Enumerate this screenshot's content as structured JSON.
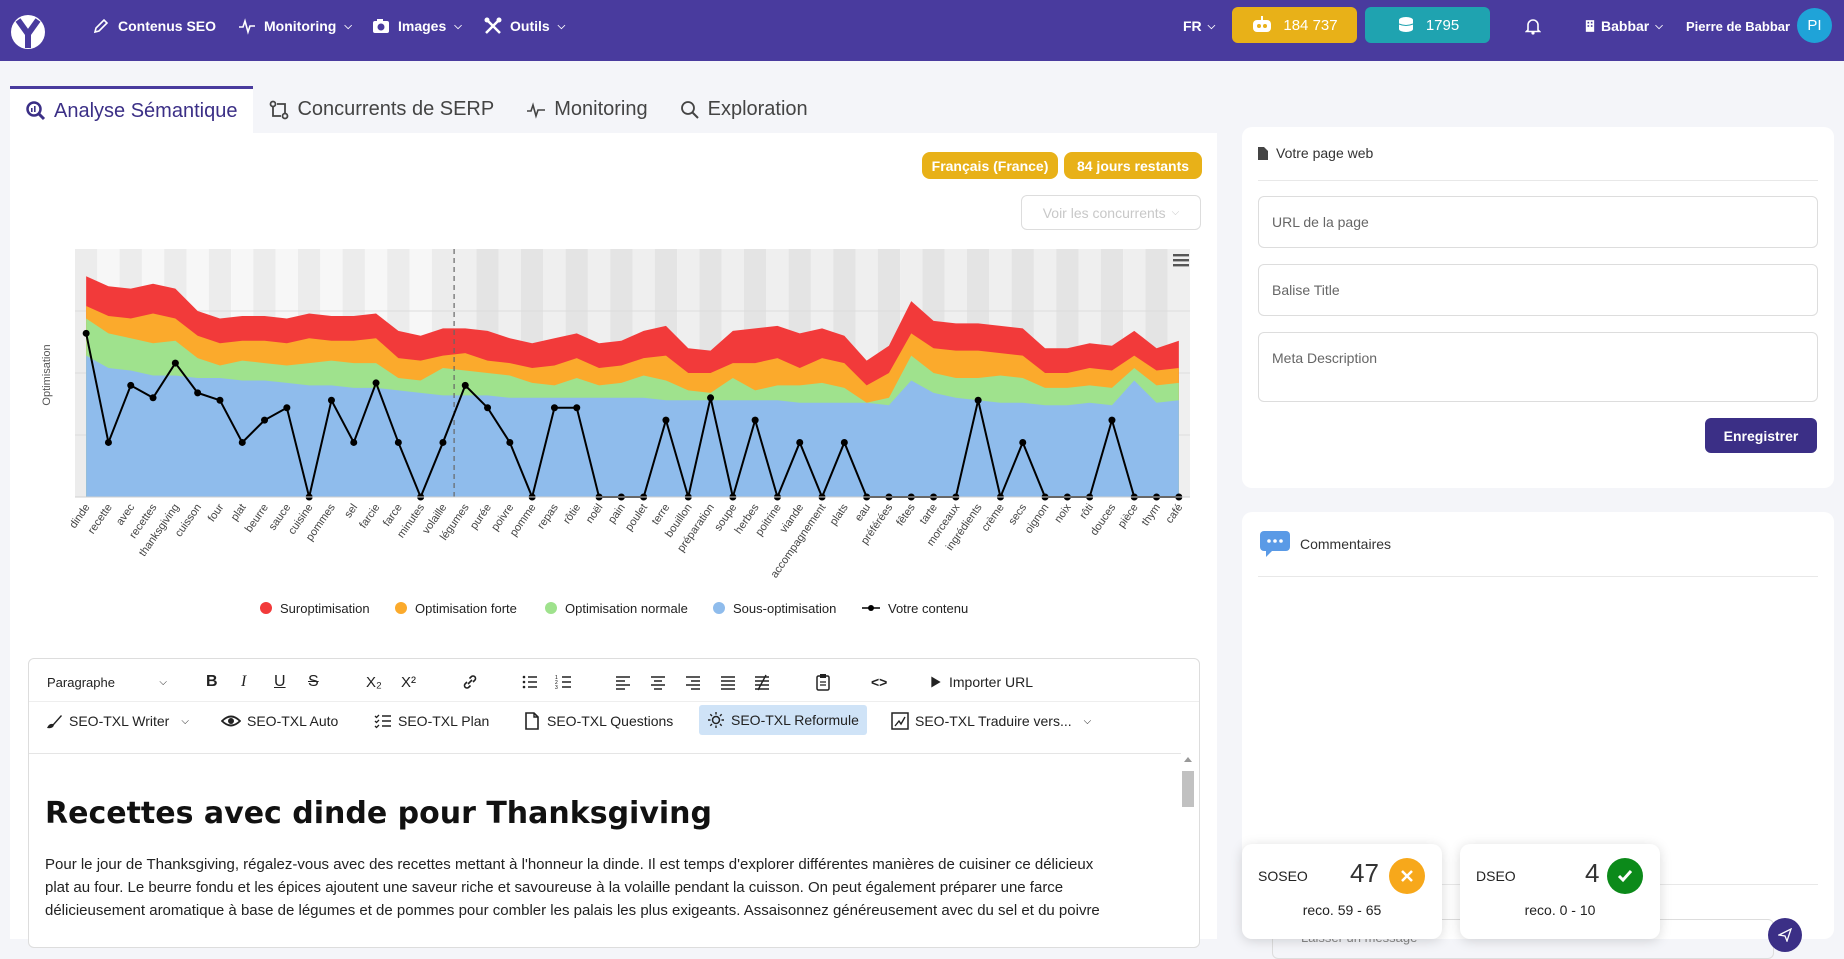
{
  "nav": {
    "items": [
      {
        "label": "Contenus SEO"
      },
      {
        "label": "Monitoring"
      },
      {
        "label": "Images"
      },
      {
        "label": "Outils"
      }
    ],
    "lang": "FR",
    "credits_primary": "184 737",
    "credits_secondary": "1795",
    "workspace": "Babbar",
    "user_name": "Pierre de Babbar",
    "user_initials": "PI"
  },
  "tabs": [
    {
      "label": "Analyse Sémantique"
    },
    {
      "label": "Concurrents de SERP"
    },
    {
      "label": "Monitoring"
    },
    {
      "label": "Exploration"
    }
  ],
  "badges": {
    "language": "Français (France)",
    "days": "84 jours restants"
  },
  "compare_button": "Voir les concurrents",
  "colors": {
    "brand": "#493b9e",
    "gold": "#e8b118",
    "teal": "#1fa3b0",
    "red": "#f23a3a",
    "orange": "#fbaa2c",
    "green": "#9fe28d",
    "blue": "#8fbcec"
  },
  "chart_data": {
    "type": "area",
    "ylabel": "Optimisation",
    "categories": [
      "dinde",
      "recette",
      "avec",
      "recettes",
      "thanksgiving",
      "cuisson",
      "four",
      "plat",
      "beurre",
      "sauce",
      "cuisine",
      "pommes",
      "sel",
      "farcie",
      "farce",
      "minutes",
      "volaille",
      "légumes",
      "purée",
      "poivre",
      "pomme",
      "repas",
      "rôtie",
      "noël",
      "pain",
      "poulet",
      "terre",
      "bouillon",
      "préparation",
      "soupe",
      "herbes",
      "poitrine",
      "viande",
      "accompagnement",
      "plats",
      "eau",
      "préférées",
      "fêtes",
      "tarte",
      "morceaux",
      "ingrédients",
      "crème",
      "secs",
      "oignon",
      "noix",
      "rôti",
      "douces",
      "pièce",
      "thym",
      "café"
    ],
    "series": [
      {
        "name": "Sous-optimisation",
        "values": [
          57,
          52,
          51,
          49,
          49,
          48,
          48,
          47,
          47,
          46,
          45,
          45,
          44,
          44,
          43,
          42,
          41,
          41,
          41,
          40,
          40,
          40,
          40,
          40,
          40,
          40,
          39,
          39,
          39,
          39,
          39,
          39,
          38,
          38,
          38,
          38,
          37,
          47,
          42,
          40,
          39,
          38,
          38,
          37,
          37,
          38,
          37,
          47,
          38,
          39
        ]
      },
      {
        "name": "Optimisation normale",
        "values": [
          72,
          66,
          64,
          62,
          63,
          56,
          53,
          55,
          54,
          53,
          54,
          55,
          54,
          54,
          48,
          47,
          52,
          51,
          50,
          49,
          46,
          45,
          48,
          45,
          46,
          49,
          47,
          43,
          42,
          48,
          43,
          45,
          45,
          46,
          44,
          38,
          40,
          57,
          50,
          48,
          48,
          49,
          48,
          44,
          44,
          45,
          44,
          52,
          45,
          46
        ]
      },
      {
        "name": "Optimisation forte",
        "values": [
          77,
          73,
          72,
          74,
          72,
          65,
          62,
          63,
          63,
          62,
          64,
          63,
          63,
          64,
          56,
          55,
          57,
          58,
          55,
          54,
          52,
          53,
          56,
          52,
          53,
          56,
          57,
          50,
          50,
          54,
          54,
          56,
          52,
          56,
          54,
          45,
          50,
          66,
          60,
          59,
          59,
          58,
          57,
          50,
          50,
          52,
          51,
          57,
          51,
          52
        ]
      },
      {
        "name": "Suroptimisation",
        "values": [
          89,
          85,
          84,
          86,
          84,
          75,
          72,
          73,
          73,
          72,
          74,
          73,
          73,
          74,
          67,
          65,
          68,
          68,
          67,
          64,
          62,
          64,
          66,
          62,
          63,
          67,
          69,
          60,
          59,
          67,
          68,
          69,
          66,
          68,
          65,
          55,
          61,
          79,
          71,
          70,
          70,
          69,
          68,
          60,
          60,
          62,
          61,
          67,
          60,
          63
        ]
      },
      {
        "name": "Votre contenu",
        "values": [
          66,
          22,
          45,
          40,
          54,
          42,
          39,
          22,
          31,
          36,
          0,
          39,
          22,
          46,
          22,
          0,
          22,
          45,
          36,
          22,
          0,
          36,
          36,
          0,
          0,
          0,
          31,
          0,
          40,
          0,
          31,
          0,
          22,
          0,
          22,
          0,
          0,
          0,
          0,
          0,
          39,
          0,
          22,
          0,
          0,
          0,
          31,
          0,
          0,
          0
        ]
      }
    ],
    "ylim": [
      0,
      100
    ],
    "marker_after": "volaille",
    "legend_position": "bottom"
  },
  "editor": {
    "format": "Paragraphe",
    "import_url": "Importer URL",
    "ai_tools": [
      "SEO-TXL Writer",
      "SEO-TXL Auto",
      "SEO-TXL Plan",
      "SEO-TXL Questions",
      "SEO-TXL Reformule",
      "SEO-TXL Traduire vers..."
    ],
    "heading": "Recettes avec dinde pour Thanksgiving",
    "paragraph_lines": [
      "Pour le jour de Thanksgiving, régalez-vous avec des recettes mettant à l'honneur la dinde. Il est temps d'explorer différentes manières de cuisiner ce délicieux",
      "plat au four. Le beurre fondu et les épices ajoutent une saveur riche et savoureuse à la volaille pendant la cuisson. On peut également préparer une farce",
      "délicieusement aromatique à base de légumes et de pommes pour combler les palais les plus exigeants. Assaisonnez généreusement avec du sel et du poivre"
    ]
  },
  "webpage_panel": {
    "title": "Votre page web",
    "url_label": "URL de la page",
    "title_label": "Balise Title",
    "meta_label": "Meta Description",
    "save": "Enregistrer"
  },
  "comments": {
    "title": "Commentaires",
    "placeholder": "Laisser un message"
  },
  "scores": [
    {
      "label": "SOSEO",
      "value": "47",
      "reco": "reco. 59 - 65",
      "status": "bad"
    },
    {
      "label": "DSEO",
      "value": "4",
      "reco": "reco. 0 - 10",
      "status": "good"
    }
  ]
}
